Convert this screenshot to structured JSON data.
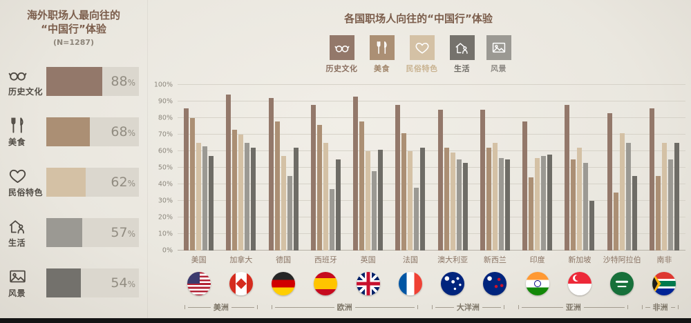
{
  "palette": {
    "icon_dark": "#4f4a43",
    "icon_light": "#ffffff",
    "track_bg": "#dbd7ce",
    "title_brown": "#7b5d4b"
  },
  "left_panel": {
    "title_line1": "海外职场人最向往的",
    "title_line2": "“中国行”体验",
    "subtitle": "(N=1287)",
    "items": [
      {
        "label": "历史文化",
        "value": 88,
        "color": "#93786a",
        "icon": "glasses-icon"
      },
      {
        "label": "美食",
        "value": 68,
        "color": "#ab8f74",
        "icon": "cutlery-icon"
      },
      {
        "label": "民俗特色",
        "value": 62,
        "color": "#d4c1a5",
        "icon": "heart-icon"
      },
      {
        "label": "生活",
        "value": 57,
        "color": "#9b9993",
        "icon": "house-icon"
      },
      {
        "label": "风景",
        "value": 54,
        "color": "#73716c",
        "icon": "picture-icon"
      }
    ]
  },
  "right_panel": {
    "title": "各国职场人向往的“中国行”体验",
    "legend": [
      {
        "label": "历史文化",
        "color": "#93786a",
        "label_color": "#8a6f5f",
        "icon": "glasses-icon"
      },
      {
        "label": "美食",
        "color": "#ab8f74",
        "label_color": "#a2876c",
        "icon": "cutlery-icon"
      },
      {
        "label": "民俗特色",
        "color": "#d4c1a5",
        "label_color": "#c9b391",
        "icon": "heart-icon"
      },
      {
        "label": "生活",
        "color": "#75726c",
        "label_color": "#6d6a64",
        "icon": "house-icon"
      },
      {
        "label": "风景",
        "color": "#9b9993",
        "label_color": "#8d8a84",
        "icon": "picture-icon"
      }
    ]
  },
  "chart_data": {
    "type": "bar",
    "title": "各国职场人向往的“中国行”体验",
    "xlabel": "",
    "ylabel": "",
    "ylim": [
      0,
      100
    ],
    "grid": true,
    "legend_position": "top",
    "yticks": [
      "0%",
      "10%",
      "20%",
      "30%",
      "40%",
      "50%",
      "60%",
      "70%",
      "80%",
      "90%",
      "100%"
    ],
    "categories": [
      "美国",
      "加拿大",
      "德国",
      "西班牙",
      "英国",
      "法国",
      "澳大利亚",
      "新西兰",
      "印度",
      "新加坡",
      "沙特阿拉伯",
      "南非"
    ],
    "flags": [
      "us",
      "ca",
      "de",
      "es",
      "gb",
      "fr",
      "au",
      "nz",
      "in",
      "sg",
      "sa",
      "za"
    ],
    "series": [
      {
        "key": "history-culture",
        "name": "历史文化",
        "color": "#93786a",
        "values": [
          86,
          94,
          92,
          88,
          93,
          88,
          85,
          85,
          78,
          88,
          83,
          86
        ]
      },
      {
        "key": "food",
        "name": "美食",
        "color": "#ab8f74",
        "values": [
          80,
          73,
          78,
          76,
          78,
          71,
          62,
          62,
          44,
          55,
          35,
          45
        ]
      },
      {
        "key": "folk-custom",
        "name": "民俗特色",
        "color": "#d4c1a5",
        "values": [
          65,
          70,
          57,
          65,
          60,
          60,
          59,
          65,
          56,
          62,
          71,
          65
        ]
      },
      {
        "key": "life",
        "name": "生活",
        "color": "#9b9993",
        "values": [
          63,
          65,
          45,
          37,
          48,
          38,
          55,
          56,
          57,
          53,
          65,
          55
        ]
      },
      {
        "key": "scenery",
        "name": "风景",
        "color": "#6e6c66",
        "values": [
          57,
          62,
          62,
          55,
          61,
          62,
          53,
          55,
          58,
          30,
          45,
          65
        ]
      }
    ],
    "regions": [
      {
        "label": "美洲",
        "span": 2
      },
      {
        "label": "欧洲",
        "span": 4
      },
      {
        "label": "大洋洲",
        "span": 2
      },
      {
        "label": "亚洲",
        "span": 3
      },
      {
        "label": "非洲",
        "span": 1
      }
    ]
  }
}
